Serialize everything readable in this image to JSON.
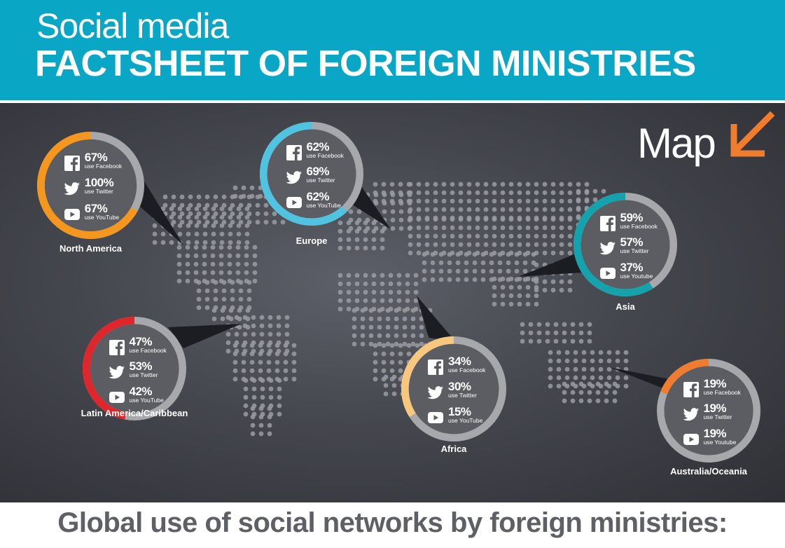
{
  "header": {
    "title_top": "Social media",
    "title_main": "FACTSHEET OF FOREIGN MINISTRIES"
  },
  "map": {
    "label": "Map",
    "arrow_icon": "arrow-down-left-icon",
    "arrow_color": "#f07c2f"
  },
  "regions": [
    {
      "name": "North America",
      "color": "#f5961f",
      "facebook_pct": 67,
      "twitter_pct": 100,
      "youtube_pct": 67,
      "stats": [
        {
          "icon": "facebook-icon",
          "value": "67%",
          "label": "use Facebook"
        },
        {
          "icon": "twitter-icon",
          "value": "100%",
          "label": "use Twitter"
        },
        {
          "icon": "youtube-icon",
          "value": "67%",
          "label": "use YouTube"
        }
      ]
    },
    {
      "name": "Europe",
      "color": "#4fc3df",
      "facebook_pct": 62,
      "twitter_pct": 69,
      "youtube_pct": 62,
      "stats": [
        {
          "icon": "facebook-icon",
          "value": "62%",
          "label": "use Facebook"
        },
        {
          "icon": "twitter-icon",
          "value": "69%",
          "label": "use Twitter"
        },
        {
          "icon": "youtube-icon",
          "value": "62%",
          "label": "use YouTube"
        }
      ]
    },
    {
      "name": "Asia",
      "color": "#14a3ad",
      "facebook_pct": 59,
      "twitter_pct": 57,
      "youtube_pct": 37,
      "stats": [
        {
          "icon": "facebook-icon",
          "value": "59%",
          "label": "use Facebook"
        },
        {
          "icon": "twitter-icon",
          "value": "57%",
          "label": "use Twitter"
        },
        {
          "icon": "youtube-icon",
          "value": "37%",
          "label": "use Youtube"
        }
      ]
    },
    {
      "name": "Latin America/Caribbean",
      "color": "#e0252b",
      "facebook_pct": 47,
      "twitter_pct": 53,
      "youtube_pct": 42,
      "stats": [
        {
          "icon": "facebook-icon",
          "value": "47%",
          "label": "use Facebook"
        },
        {
          "icon": "twitter-icon",
          "value": "53%",
          "label": "use Twitter"
        },
        {
          "icon": "youtube-icon",
          "value": "42%",
          "label": "use YouTube"
        }
      ]
    },
    {
      "name": "Africa",
      "color": "#f7c77e",
      "facebook_pct": 34,
      "twitter_pct": 30,
      "youtube_pct": 15,
      "stats": [
        {
          "icon": "facebook-icon",
          "value": "34%",
          "label": "use Facebook"
        },
        {
          "icon": "twitter-icon",
          "value": "30%",
          "label": "use Twitter"
        },
        {
          "icon": "youtube-icon",
          "value": "15%",
          "label": "use YouTube"
        }
      ]
    },
    {
      "name": "Australia/Oceania",
      "color": "#f07c2f",
      "facebook_pct": 19,
      "twitter_pct": 19,
      "youtube_pct": 19,
      "stats": [
        {
          "icon": "facebook-icon",
          "value": "19%",
          "label": "use Facebook"
        },
        {
          "icon": "twitter-icon",
          "value": "19%",
          "label": "use Twitter"
        },
        {
          "icon": "youtube-icon",
          "value": "19%",
          "label": "use Youtube"
        }
      ]
    }
  ],
  "footer": {
    "title": "Global use of social networks by foreign ministries:"
  }
}
